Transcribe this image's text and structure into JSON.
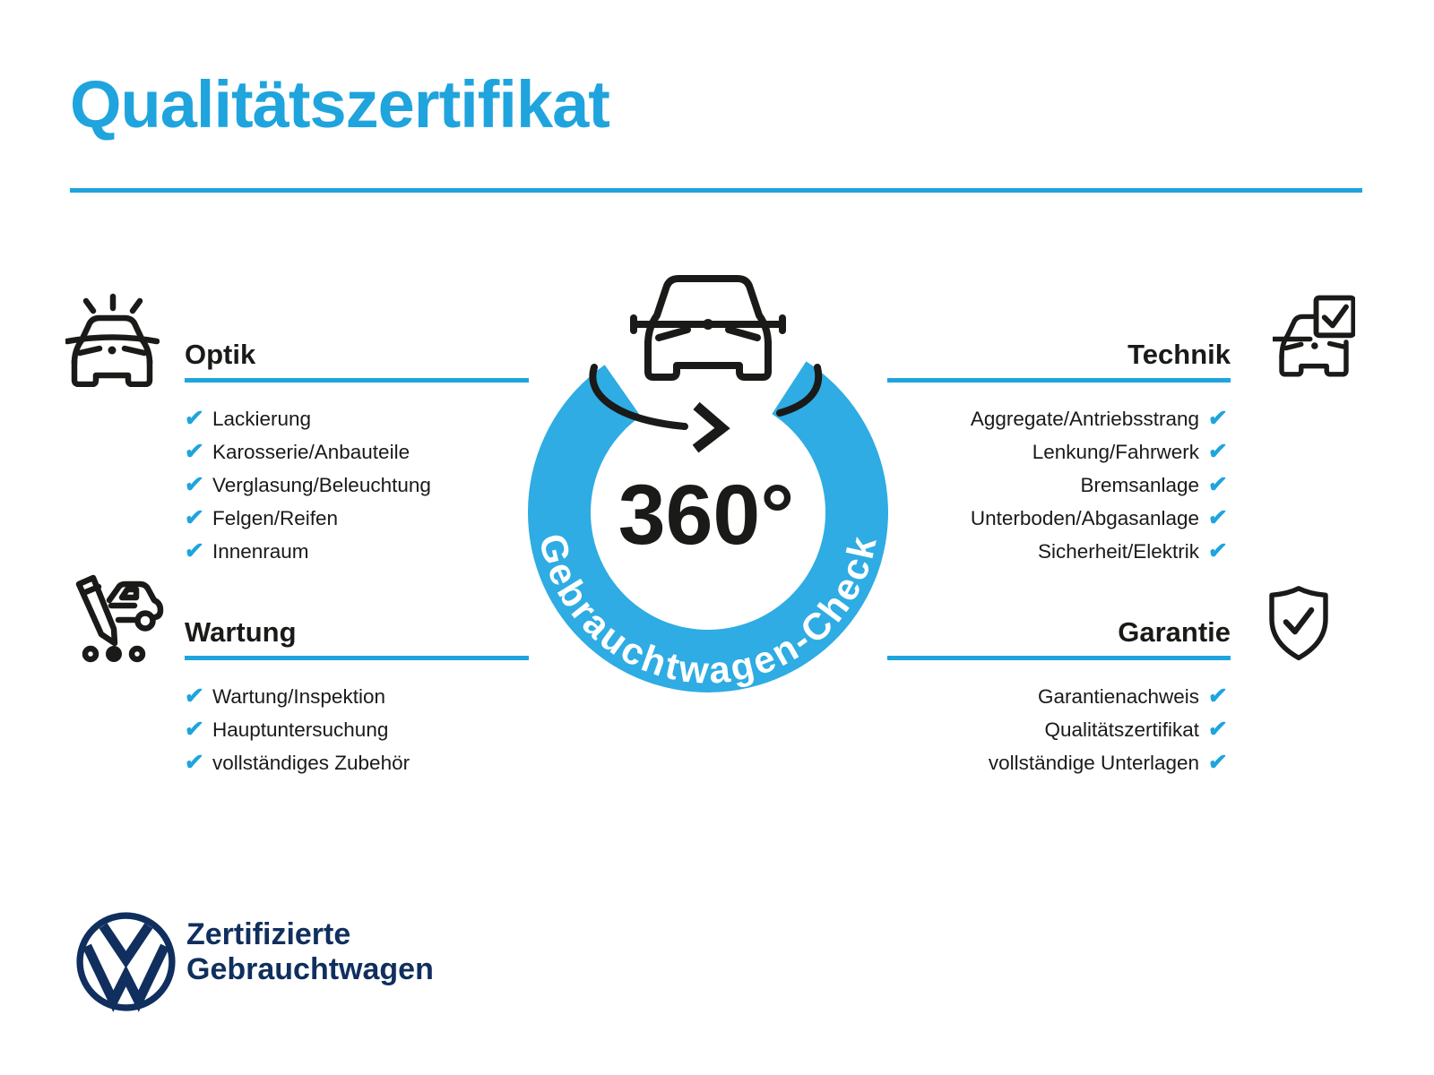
{
  "title": "Qualitätszertifikat",
  "badge": {
    "degrees": "360°",
    "ring_label": "Gebrauchtwagen-Check"
  },
  "check_glyph": "✔",
  "sections": {
    "optik": {
      "heading": "Optik",
      "items": [
        "Lackierung",
        "Karosserie/Anbauteile",
        "Verglasung/Beleuchtung",
        "Felgen/Reifen",
        "Innenraum"
      ]
    },
    "wartung": {
      "heading": "Wartung",
      "items": [
        "Wartung/Inspektion",
        "Hauptuntersuchung",
        "vollständiges Zubehör"
      ]
    },
    "technik": {
      "heading": "Technik",
      "items": [
        "Aggregate/Antriebsstrang",
        "Lenkung/Fahrwerk",
        "Bremsanlage",
        "Unterboden/Abgasanlage",
        "Sicherheit/Elektrik"
      ]
    },
    "garantie": {
      "heading": "Garantie",
      "items": [
        "Garantienachweis",
        "Qualitätszertifikat",
        "vollständige Unterlagen"
      ]
    }
  },
  "footer": {
    "brand_line1": "Zertifizierte",
    "brand_line2": "Gebrauchtwagen"
  },
  "icons": {
    "optik": "car-shine-icon",
    "wartung": "service-pencil-car-icon",
    "technik": "car-checkbox-icon",
    "garantie": "shield-check-icon",
    "badge": "car-rotation-icon",
    "logo": "vw-logo"
  },
  "colors": {
    "blue": "#1FA4DD",
    "ring": "#2EACE3",
    "ink": "#1A1A18",
    "navy": "#102F5E",
    "bg": "#FFFFFF"
  }
}
